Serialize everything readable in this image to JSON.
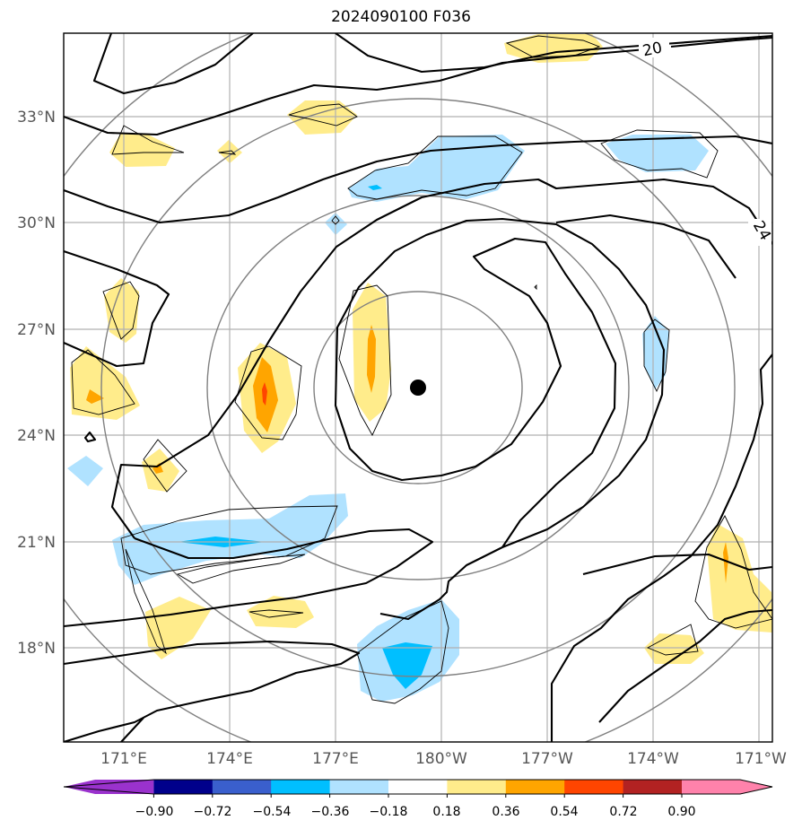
{
  "title": "2024090100 F036",
  "map": {
    "lat_ticks": [
      "33°N",
      "30°N",
      "27°N",
      "24°N",
      "21°N",
      "18°N"
    ],
    "lon_ticks": [
      "171°E",
      "174°E",
      "177°E",
      "180°W",
      "177°W",
      "174°W",
      "171°W"
    ],
    "contour_labels": [
      "20",
      "24"
    ],
    "center_marker": "storm-center",
    "line_color": "#000000",
    "range_ring_color": "#808080",
    "grid_color": "#b0b0b0"
  },
  "colorbar": {
    "tick_labels": [
      "−0.90",
      "−0.72",
      "−0.54",
      "−0.36",
      "−0.18",
      "0.18",
      "0.36",
      "0.54",
      "0.72",
      "0.90"
    ],
    "colors": [
      "#9a32cd",
      "#00008b",
      "#3a5fcd",
      "#00bfff",
      "#b0e2ff",
      "#ffffff",
      "#ffec8b",
      "#ffa500",
      "#ff4500",
      "#b22222",
      "#ff82ab"
    ]
  }
}
